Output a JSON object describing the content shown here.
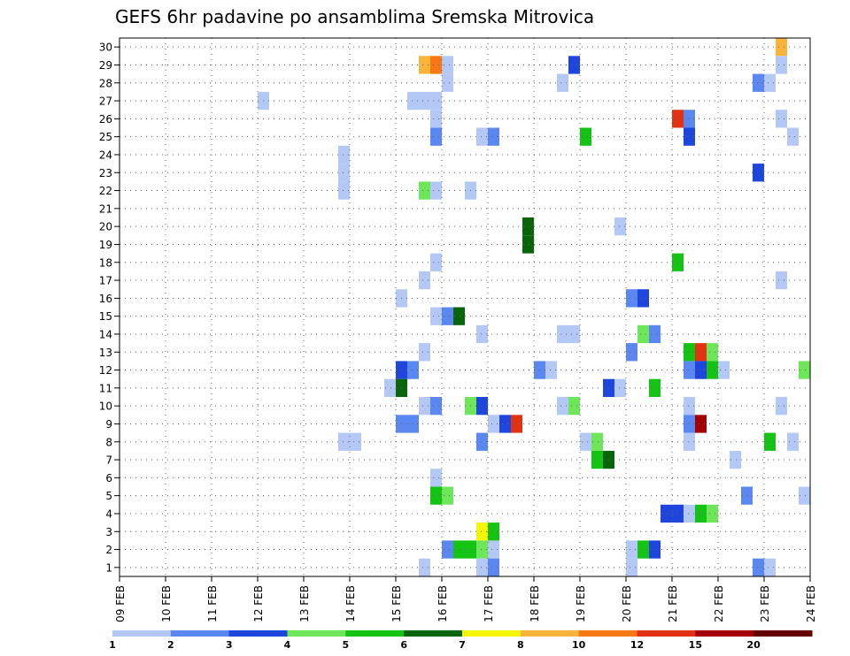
{
  "chart_data": {
    "type": "heatmap",
    "title": "GEFS 6hr padavine po ansamblima Sremska Mitrovica",
    "x_tick_labels": [
      "09 FEB",
      "10 FEB",
      "11 FEB",
      "12 FEB",
      "13 FEB",
      "14 FEB",
      "15 FEB",
      "16 FEB",
      "17 FEB",
      "18 FEB",
      "19 FEB",
      "20 FEB",
      "21 FEB",
      "22 FEB",
      "23 FEB",
      "24 FEB"
    ],
    "y_tick_labels": [
      "1",
      "2",
      "3",
      "4",
      "5",
      "6",
      "7",
      "8",
      "9",
      "10",
      "11",
      "12",
      "13",
      "14",
      "15",
      "16",
      "17",
      "18",
      "19",
      "20",
      "21",
      "22",
      "23",
      "24",
      "25",
      "26",
      "27",
      "28",
      "29",
      "30"
    ],
    "ylim": [
      0,
      30
    ],
    "time_step_hours": 6,
    "grid": true,
    "legend": {
      "position": "bottom",
      "labels": [
        "1",
        "2",
        "3",
        "4",
        "5",
        "6",
        "7",
        "8",
        "10",
        "12",
        "15",
        "20"
      ],
      "colors": [
        "#b4c8f5",
        "#5a87f0",
        "#1e46dc",
        "#6ee65a",
        "#14c314",
        "#0a640a",
        "#f5f50a",
        "#fab43c",
        "#f57814",
        "#e13214",
        "#a50000",
        "#640000"
      ]
    },
    "colors_by_class": {
      "1": "#b4c8f5",
      "2": "#5a87f0",
      "3": "#1e46dc",
      "4": "#6ee65a",
      "5": "#14c314",
      "6": "#0a640a",
      "7": "#f5f50a",
      "8": "#fab43c",
      "9": "#f57814",
      "10": "#e13214",
      "11": "#a50000",
      "12": "#640000"
    },
    "cells_columns": [
      "date",
      "hour_utc",
      "member",
      "precip_class"
    ],
    "cells": [
      [
        "12 FEB",
        0,
        27,
        1
      ],
      [
        "13 FEB",
        18,
        22,
        1
      ],
      [
        "13 FEB",
        18,
        23,
        1
      ],
      [
        "13 FEB",
        18,
        24,
        1
      ],
      [
        "13 FEB",
        18,
        8,
        1
      ],
      [
        "14 FEB",
        0,
        8,
        1
      ],
      [
        "15 FEB",
        0,
        16,
        1
      ],
      [
        "14 FEB",
        18,
        11,
        1
      ],
      [
        "15 FEB",
        0,
        12,
        3
      ],
      [
        "15 FEB",
        6,
        12,
        2
      ],
      [
        "15 FEB",
        0,
        11,
        6
      ],
      [
        "15 FEB",
        0,
        9,
        2
      ],
      [
        "15 FEB",
        6,
        9,
        2
      ],
      [
        "15 FEB",
        6,
        27,
        1
      ],
      [
        "15 FEB",
        12,
        27,
        1
      ],
      [
        "15 FEB",
        18,
        27,
        1
      ],
      [
        "15 FEB",
        12,
        29,
        8
      ],
      [
        "15 FEB",
        18,
        29,
        9
      ],
      [
        "16 FEB",
        0,
        29,
        1
      ],
      [
        "16 FEB",
        0,
        28,
        1
      ],
      [
        "15 FEB",
        18,
        26,
        1
      ],
      [
        "15 FEB",
        18,
        25,
        2
      ],
      [
        "15 FEB",
        12,
        22,
        4
      ],
      [
        "15 FEB",
        18,
        22,
        1
      ],
      [
        "16 FEB",
        12,
        22,
        1
      ],
      [
        "15 FEB",
        18,
        18,
        1
      ],
      [
        "15 FEB",
        12,
        17,
        1
      ],
      [
        "15 FEB",
        18,
        15,
        1
      ],
      [
        "16 FEB",
        0,
        15,
        2
      ],
      [
        "16 FEB",
        6,
        15,
        6
      ],
      [
        "15 FEB",
        12,
        13,
        1
      ],
      [
        "15 FEB",
        12,
        10,
        1
      ],
      [
        "15 FEB",
        18,
        10,
        2
      ],
      [
        "15 FEB",
        18,
        6,
        1
      ],
      [
        "15 FEB",
        18,
        5,
        5
      ],
      [
        "16 FEB",
        0,
        5,
        4
      ],
      [
        "16 FEB",
        0,
        2,
        2
      ],
      [
        "16 FEB",
        6,
        2,
        5
      ],
      [
        "16 FEB",
        12,
        2,
        5
      ],
      [
        "16 FEB",
        18,
        2,
        4
      ],
      [
        "17 FEB",
        0,
        2,
        1
      ],
      [
        "15 FEB",
        12,
        1,
        1
      ],
      [
        "16 FEB",
        18,
        1,
        1
      ],
      [
        "17 FEB",
        0,
        1,
        2
      ],
      [
        "16 FEB",
        18,
        3,
        7
      ],
      [
        "17 FEB",
        0,
        3,
        5
      ],
      [
        "16 FEB",
        18,
        25,
        1
      ],
      [
        "17 FEB",
        0,
        25,
        2
      ],
      [
        "16 FEB",
        12,
        10,
        4
      ],
      [
        "16 FEB",
        18,
        10,
        3
      ],
      [
        "16 FEB",
        18,
        8,
        2
      ],
      [
        "16 FEB",
        18,
        14,
        1
      ],
      [
        "17 FEB",
        0,
        9,
        1
      ],
      [
        "17 FEB",
        6,
        9,
        3
      ],
      [
        "17 FEB",
        12,
        9,
        10
      ],
      [
        "17 FEB",
        18,
        19,
        6
      ],
      [
        "17 FEB",
        18,
        20,
        6
      ],
      [
        "18 FEB",
        0,
        12,
        2
      ],
      [
        "18 FEB",
        6,
        12,
        1
      ],
      [
        "18 FEB",
        12,
        28,
        1
      ],
      [
        "18 FEB",
        18,
        29,
        3
      ],
      [
        "18 FEB",
        12,
        14,
        1
      ],
      [
        "18 FEB",
        18,
        14,
        1
      ],
      [
        "18 FEB",
        12,
        10,
        1
      ],
      [
        "18 FEB",
        18,
        10,
        4
      ],
      [
        "19 FEB",
        0,
        25,
        5
      ],
      [
        "19 FEB",
        0,
        8,
        1
      ],
      [
        "19 FEB",
        6,
        8,
        4
      ],
      [
        "19 FEB",
        6,
        7,
        5
      ],
      [
        "19 FEB",
        12,
        7,
        6
      ],
      [
        "19 FEB",
        12,
        11,
        3
      ],
      [
        "19 FEB",
        18,
        11,
        1
      ],
      [
        "19 FEB",
        18,
        20,
        1
      ],
      [
        "20 FEB",
        0,
        16,
        2
      ],
      [
        "20 FEB",
        6,
        16,
        3
      ],
      [
        "20 FEB",
        0,
        13,
        2
      ],
      [
        "20 FEB",
        6,
        14,
        4
      ],
      [
        "20 FEB",
        12,
        14,
        2
      ],
      [
        "20 FEB",
        12,
        11,
        5
      ],
      [
        "20 FEB",
        0,
        2,
        1
      ],
      [
        "20 FEB",
        6,
        2,
        5
      ],
      [
        "20 FEB",
        12,
        2,
        3
      ],
      [
        "20 FEB",
        0,
        1,
        1
      ],
      [
        "20 FEB",
        18,
        4,
        3
      ],
      [
        "21 FEB",
        0,
        4,
        3
      ],
      [
        "21 FEB",
        6,
        4,
        1
      ],
      [
        "21 FEB",
        12,
        4,
        5
      ],
      [
        "21 FEB",
        18,
        4,
        4
      ],
      [
        "21 FEB",
        0,
        18,
        5
      ],
      [
        "21 FEB",
        0,
        26,
        10
      ],
      [
        "21 FEB",
        6,
        26,
        2
      ],
      [
        "21 FEB",
        6,
        25,
        3
      ],
      [
        "21 FEB",
        6,
        13,
        5
      ],
      [
        "21 FEB",
        12,
        13,
        10
      ],
      [
        "21 FEB",
        18,
        13,
        4
      ],
      [
        "21 FEB",
        6,
        12,
        2
      ],
      [
        "21 FEB",
        12,
        12,
        3
      ],
      [
        "21 FEB",
        18,
        12,
        5
      ],
      [
        "22 FEB",
        0,
        12,
        1
      ],
      [
        "21 FEB",
        6,
        10,
        1
      ],
      [
        "21 FEB",
        6,
        9,
        2
      ],
      [
        "21 FEB",
        12,
        9,
        11
      ],
      [
        "21 FEB",
        6,
        8,
        1
      ],
      [
        "22 FEB",
        6,
        7,
        1
      ],
      [
        "22 FEB",
        12,
        5,
        2
      ],
      [
        "22 FEB",
        18,
        28,
        2
      ],
      [
        "23 FEB",
        0,
        28,
        1
      ],
      [
        "22 FEB",
        18,
        23,
        3
      ],
      [
        "22 FEB",
        18,
        1,
        2
      ],
      [
        "23 FEB",
        0,
        1,
        1
      ],
      [
        "23 FEB",
        0,
        8,
        5
      ],
      [
        "23 FEB",
        6,
        30,
        8
      ],
      [
        "23 FEB",
        6,
        29,
        1
      ],
      [
        "23 FEB",
        6,
        26,
        1
      ],
      [
        "23 FEB",
        6,
        17,
        1
      ],
      [
        "23 FEB",
        6,
        10,
        1
      ],
      [
        "23 FEB",
        12,
        25,
        1
      ],
      [
        "23 FEB",
        12,
        8,
        1
      ],
      [
        "23 FEB",
        18,
        12,
        4
      ],
      [
        "23 FEB",
        18,
        5,
        1
      ]
    ]
  }
}
